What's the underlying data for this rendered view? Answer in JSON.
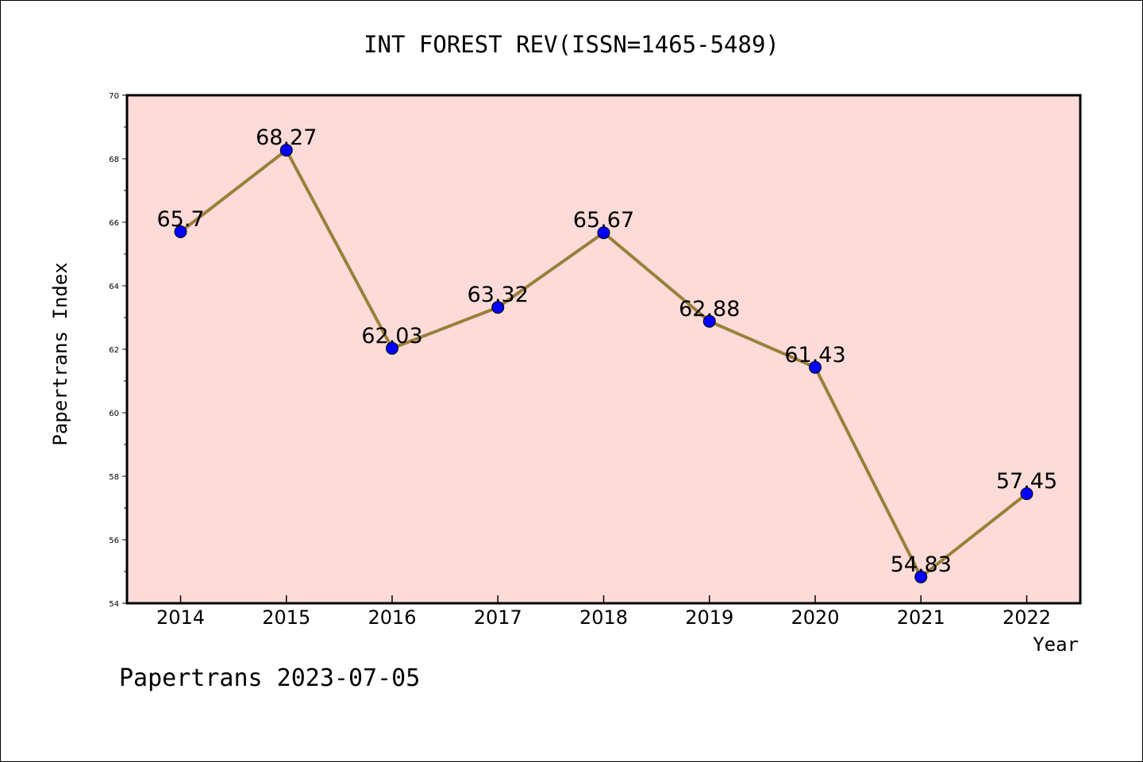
{
  "chart_data": {
    "type": "line",
    "title": "INT FOREST REV(ISSN=1465-5489)",
    "xlabel": "Year",
    "ylabel": "Papertrans Index",
    "categories": [
      "2014",
      "2015",
      "2016",
      "2017",
      "2018",
      "2019",
      "2020",
      "2021",
      "2022"
    ],
    "values": [
      65.7,
      68.27,
      62.03,
      63.32,
      65.67,
      62.88,
      61.43,
      54.83,
      57.45
    ],
    "data_labels": [
      "65.7",
      "68.27",
      "62.03",
      "63.32",
      "65.67",
      "62.88",
      "61.43",
      "54.83",
      "57.45"
    ],
    "ylim": [
      54,
      70
    ],
    "yticks": [
      54,
      56,
      58,
      60,
      62,
      64,
      66,
      68,
      70
    ],
    "ytick_labels": [
      "54",
      "56",
      "58",
      "60",
      "62",
      "64",
      "66",
      "68",
      "70"
    ],
    "grid": false,
    "colors": {
      "plot_background": "#fddbd8",
      "line": "#9b7f3a",
      "marker": "#0000ff"
    }
  },
  "footer": {
    "text": "Papertrans 2023-07-05"
  }
}
